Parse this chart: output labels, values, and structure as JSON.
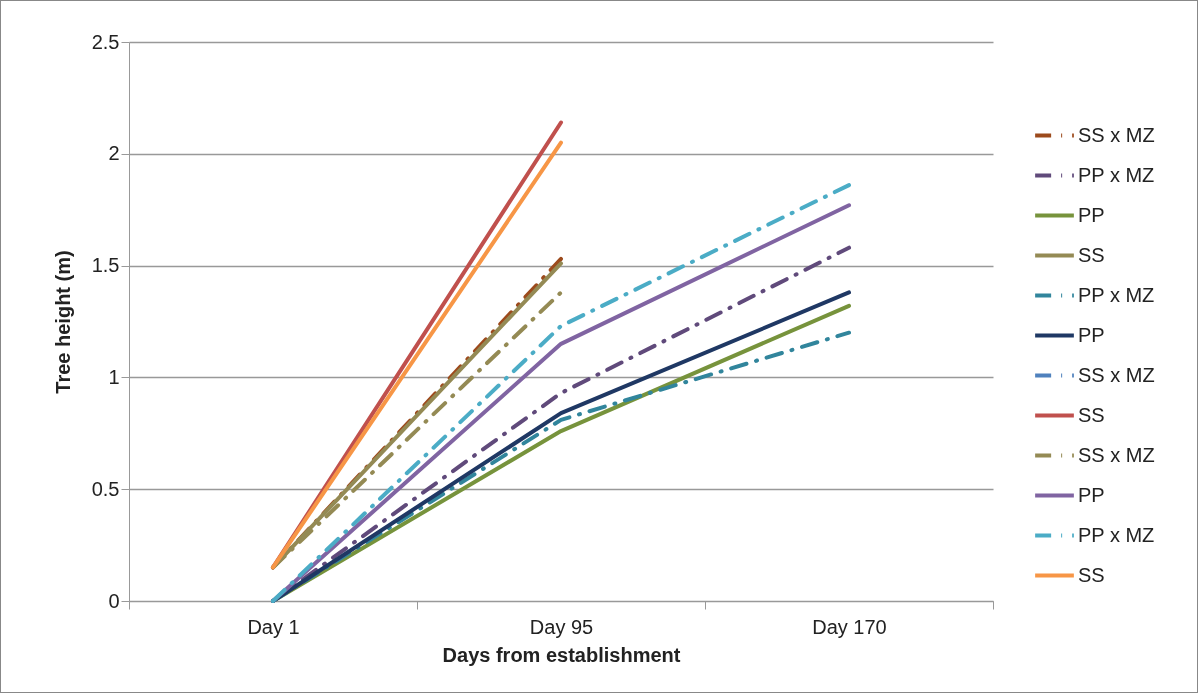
{
  "chart_data": {
    "type": "line",
    "xlabel": "Days from establishment",
    "ylabel": "Tree height (m)",
    "categories": [
      "Day 1",
      "Day 95",
      "Day 170"
    ],
    "ylim": [
      0,
      2.5
    ],
    "yticks": [
      0,
      0.5,
      1,
      1.5,
      2,
      2.5
    ],
    "grid": "y",
    "legend": "right",
    "marker": "none",
    "series": [
      {
        "name": "SS x MZ",
        "color": "#9c4a1c",
        "line_style": "dashed",
        "values": [
          0.15,
          1.53,
          null
        ]
      },
      {
        "name": "PP x MZ",
        "color": "#604a7b",
        "line_style": "dashed",
        "values": [
          0,
          0.93,
          1.58
        ]
      },
      {
        "name": "PP",
        "color": "#77933c",
        "line_style": "solid",
        "values": [
          0,
          0.76,
          1.32
        ]
      },
      {
        "name": "SS",
        "color": "#948a54",
        "line_style": "solid",
        "values": [
          0.15,
          1.51,
          null
        ]
      },
      {
        "name": "PP x MZ",
        "color": "#31859c",
        "line_style": "dashed",
        "values": [
          0,
          0.81,
          1.2
        ]
      },
      {
        "name": "PP",
        "color": "#1f3864",
        "line_style": "solid",
        "values": [
          0,
          0.84,
          1.38
        ]
      },
      {
        "name": "SS x MZ",
        "color": "#4f81bd",
        "line_style": "dashed",
        "values": [
          null,
          null,
          null
        ]
      },
      {
        "name": "SS",
        "color": "#c0504d",
        "line_style": "solid",
        "values": [
          0.15,
          2.14,
          null
        ]
      },
      {
        "name": "SS x MZ",
        "color": "#948a54",
        "line_style": "dashed",
        "values": [
          0.15,
          1.38,
          null
        ]
      },
      {
        "name": "PP",
        "color": "#8064a2",
        "line_style": "solid",
        "values": [
          0,
          1.15,
          1.77
        ]
      },
      {
        "name": "PP x MZ",
        "color": "#4bacc6",
        "line_style": "dashed",
        "values": [
          0,
          1.23,
          1.86
        ]
      },
      {
        "name": "SS",
        "color": "#f79646",
        "line_style": "solid",
        "values": [
          0.15,
          2.05,
          null
        ]
      }
    ]
  }
}
